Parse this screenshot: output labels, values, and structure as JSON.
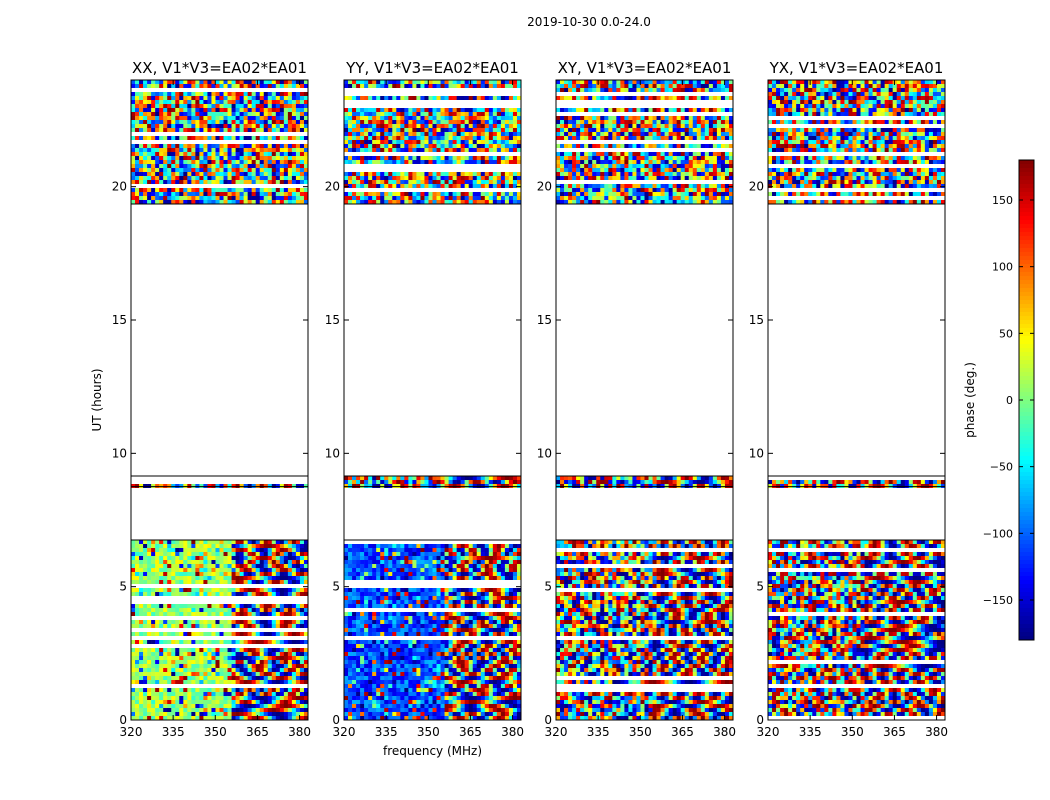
{
  "figure_title": "2019-10-30 0.0-24.0",
  "chart_data": [
    {
      "type": "heatmap",
      "title": "XX, V1*V3=EA02*EA01",
      "xlabel": "",
      "ylabel": "UT (hours)",
      "xlim": [
        320,
        383
      ],
      "ylim": [
        0,
        24
      ],
      "xticks": [
        320,
        335,
        350,
        365,
        380
      ],
      "yticks": [
        0,
        5,
        10,
        15,
        20
      ],
      "data_bands_hours": [
        [
          0.0,
          6.75
        ],
        [
          8.75,
          9.15
        ],
        [
          19.35,
          24.0
        ]
      ],
      "dominant_phase_deg": 10
    },
    {
      "type": "heatmap",
      "title": "YY, V1*V3=EA02*EA01",
      "xlabel": "frequency (MHz)",
      "ylabel": "",
      "xlim": [
        320,
        383
      ],
      "ylim": [
        0,
        24
      ],
      "xticks": [
        320,
        335,
        350,
        365,
        380
      ],
      "yticks": [
        0,
        5,
        10,
        15,
        20
      ],
      "data_bands_hours": [
        [
          0.0,
          6.75
        ],
        [
          8.75,
          9.15
        ],
        [
          19.35,
          24.0
        ]
      ],
      "dominant_phase_deg": -110
    },
    {
      "type": "heatmap",
      "title": "XY, V1*V3=EA02*EA01",
      "xlabel": "",
      "ylabel": "",
      "xlim": [
        320,
        383
      ],
      "ylim": [
        0,
        24
      ],
      "xticks": [
        320,
        335,
        350,
        365,
        380
      ],
      "yticks": [
        0,
        5,
        10,
        15,
        20
      ],
      "data_bands_hours": [
        [
          0.0,
          6.75
        ],
        [
          8.75,
          9.15
        ],
        [
          19.35,
          24.0
        ]
      ],
      "dominant_phase_deg": null
    },
    {
      "type": "heatmap",
      "title": "YX, V1*V3=EA02*EA01",
      "xlabel": "",
      "ylabel": "",
      "xlim": [
        320,
        383
      ],
      "ylim": [
        0,
        24
      ],
      "xticks": [
        320,
        335,
        350,
        365,
        380
      ],
      "yticks": [
        0,
        5,
        10,
        15,
        20
      ],
      "data_bands_hours": [
        [
          0.0,
          6.75
        ],
        [
          8.75,
          9.15
        ],
        [
          19.35,
          24.0
        ]
      ],
      "dominant_phase_deg": null
    }
  ],
  "colorbar": {
    "label": "phase (deg.)",
    "range": [
      -180,
      180
    ],
    "ticks": [
      150,
      100,
      50,
      0,
      -50,
      -100,
      -150
    ],
    "tick_labels": [
      "150",
      "100",
      "50",
      "0",
      "−50",
      "−100",
      "−150"
    ],
    "colormap": "jet",
    "colors": [
      "#00007f",
      "#0000ff",
      "#007fff",
      "#00ffff",
      "#7fff7f",
      "#ffff00",
      "#ff7f00",
      "#ff0000",
      "#7f0000"
    ]
  }
}
